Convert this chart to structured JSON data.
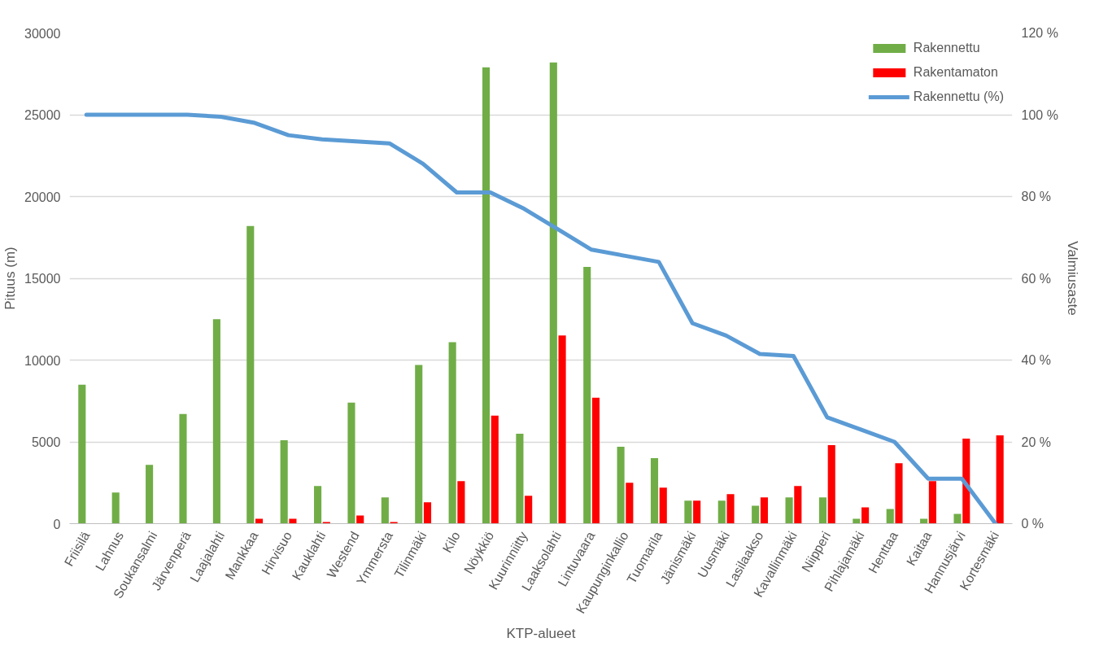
{
  "chart_data": {
    "type": "bar",
    "xlabel": "KTP-alueet",
    "ylabel": "Pituus (m)",
    "y2label": "Valmiusaste",
    "categories": [
      "Friisilä",
      "Lahnus",
      "Soukansalmi",
      "Järvenperä",
      "Laajalahti",
      "Mankkaa",
      "Hirvisuo",
      "Kauklahti",
      "Westend",
      "Ymmersta",
      "Tilinmäki",
      "Kilo",
      "Nöykkiö",
      "Kuurinniitty",
      "Laaksolahti",
      "Lintuvaara",
      "Kaupunginkallio",
      "Tuomarila",
      "Jänismäki",
      "Uusmäki",
      "Lasilaakso",
      "Kavallinmäki",
      "Niipperi",
      "Pihlajamäki",
      "Henttaa",
      "Kaitaa",
      "Hannusjärvi",
      "Kortesmäki"
    ],
    "series": [
      {
        "name": "Rakennettu",
        "color": "#70ad47",
        "values": [
          8500,
          1900,
          3600,
          6700,
          12500,
          18200,
          5100,
          2300,
          7400,
          1600,
          9700,
          11100,
          27900,
          5500,
          28200,
          15700,
          4700,
          4000,
          1400,
          1400,
          1100,
          1600,
          1600,
          300,
          900,
          300,
          600,
          0
        ]
      },
      {
        "name": "Rakentamaton",
        "color": "#ff0000",
        "values": [
          0,
          0,
          0,
          0,
          0,
          300,
          300,
          100,
          500,
          100,
          1300,
          2600,
          6600,
          1700,
          11500,
          7700,
          2500,
          2200,
          1400,
          1800,
          1600,
          2300,
          4800,
          1000,
          3700,
          2600,
          5200,
          5400
        ]
      },
      {
        "name": "Rakennettu (%)",
        "type": "line",
        "axis": "y2",
        "color": "#5b9bd5",
        "values": [
          100,
          100,
          100,
          100,
          99.5,
          98,
          95,
          94,
          93.5,
          93,
          88,
          81,
          81,
          77,
          72,
          67,
          65.5,
          64,
          49,
          46,
          41.5,
          41,
          26,
          23,
          20,
          11,
          11,
          0
        ]
      }
    ],
    "ylim": [
      0,
      30000
    ],
    "yticks": [
      0,
      5000,
      10000,
      15000,
      20000,
      25000,
      30000
    ],
    "y2lim": [
      0,
      120
    ],
    "y2ticks": [
      {
        "value": 0,
        "label": "0 %"
      },
      {
        "value": 20,
        "label": "20 %"
      },
      {
        "value": 40,
        "label": "40 %"
      },
      {
        "value": 60,
        "label": "60 %"
      },
      {
        "value": 80,
        "label": "80 %"
      },
      {
        "value": 100,
        "label": "100 %"
      },
      {
        "value": 120,
        "label": "120 %"
      }
    ],
    "grid": "y",
    "legend": "top right"
  }
}
